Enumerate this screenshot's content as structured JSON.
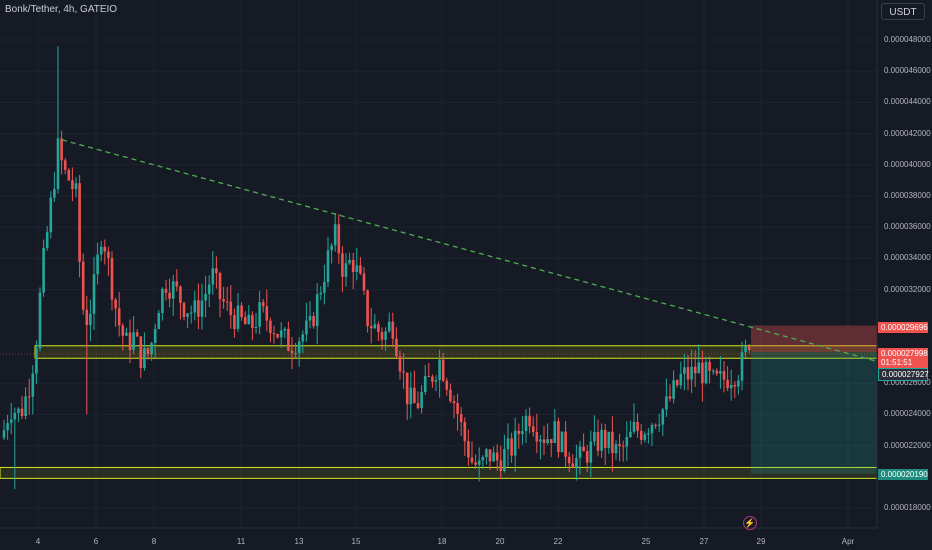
{
  "header": {
    "symbol_line": "Bonk/Tether, 4h, GATEIO",
    "currency_button": "USDT"
  },
  "colors": {
    "background": "#161a25",
    "up": "#26a69a",
    "down": "#ef5350",
    "zone": "#d6e81c",
    "trend": "#4caf50",
    "grid": "#1f2330"
  },
  "chart_data": {
    "type": "candlestick",
    "y_ticks": [
      "0.000048000",
      "0.000046000",
      "0.000044000",
      "0.000042000",
      "0.000040000",
      "0.000038000",
      "0.000036000",
      "0.000034000",
      "0.000032000",
      "0.000026000",
      "0.000024000",
      "0.000022000",
      "0.000018000"
    ],
    "ylim": [
      1.72e-05,
      4.92e-05
    ],
    "x_ticks": [
      "4",
      "6",
      "8",
      "11",
      "13",
      "15",
      "18",
      "20",
      "22",
      "25",
      "27",
      "29",
      "Apr"
    ],
    "price_labels": {
      "stop_loss": "0.000029696",
      "current": "0.000027998",
      "countdown": "01:51:51",
      "entry": "0.000027927",
      "target": "0.000020190"
    },
    "zones": [
      {
        "low": 2.76e-05,
        "high": 2.84e-05
      },
      {
        "low": 1.99e-05,
        "high": 2.06e-05
      }
    ],
    "trendline": {
      "start": [
        "4",
        4.16e-05
      ],
      "end": [
        "Apr",
        2.74e-05
      ]
    },
    "position": {
      "entry": 2.8e-05,
      "stop": 2.97e-05,
      "target": 2.02e-05
    },
    "candles_summary": "Price starts near 0.000022, spikes to 0.0000476 on day 4, ranges 0.000028–0.000036 through day 15, falls to 0.0000196 by day 19, recovers to 0.000028 by day 28"
  }
}
